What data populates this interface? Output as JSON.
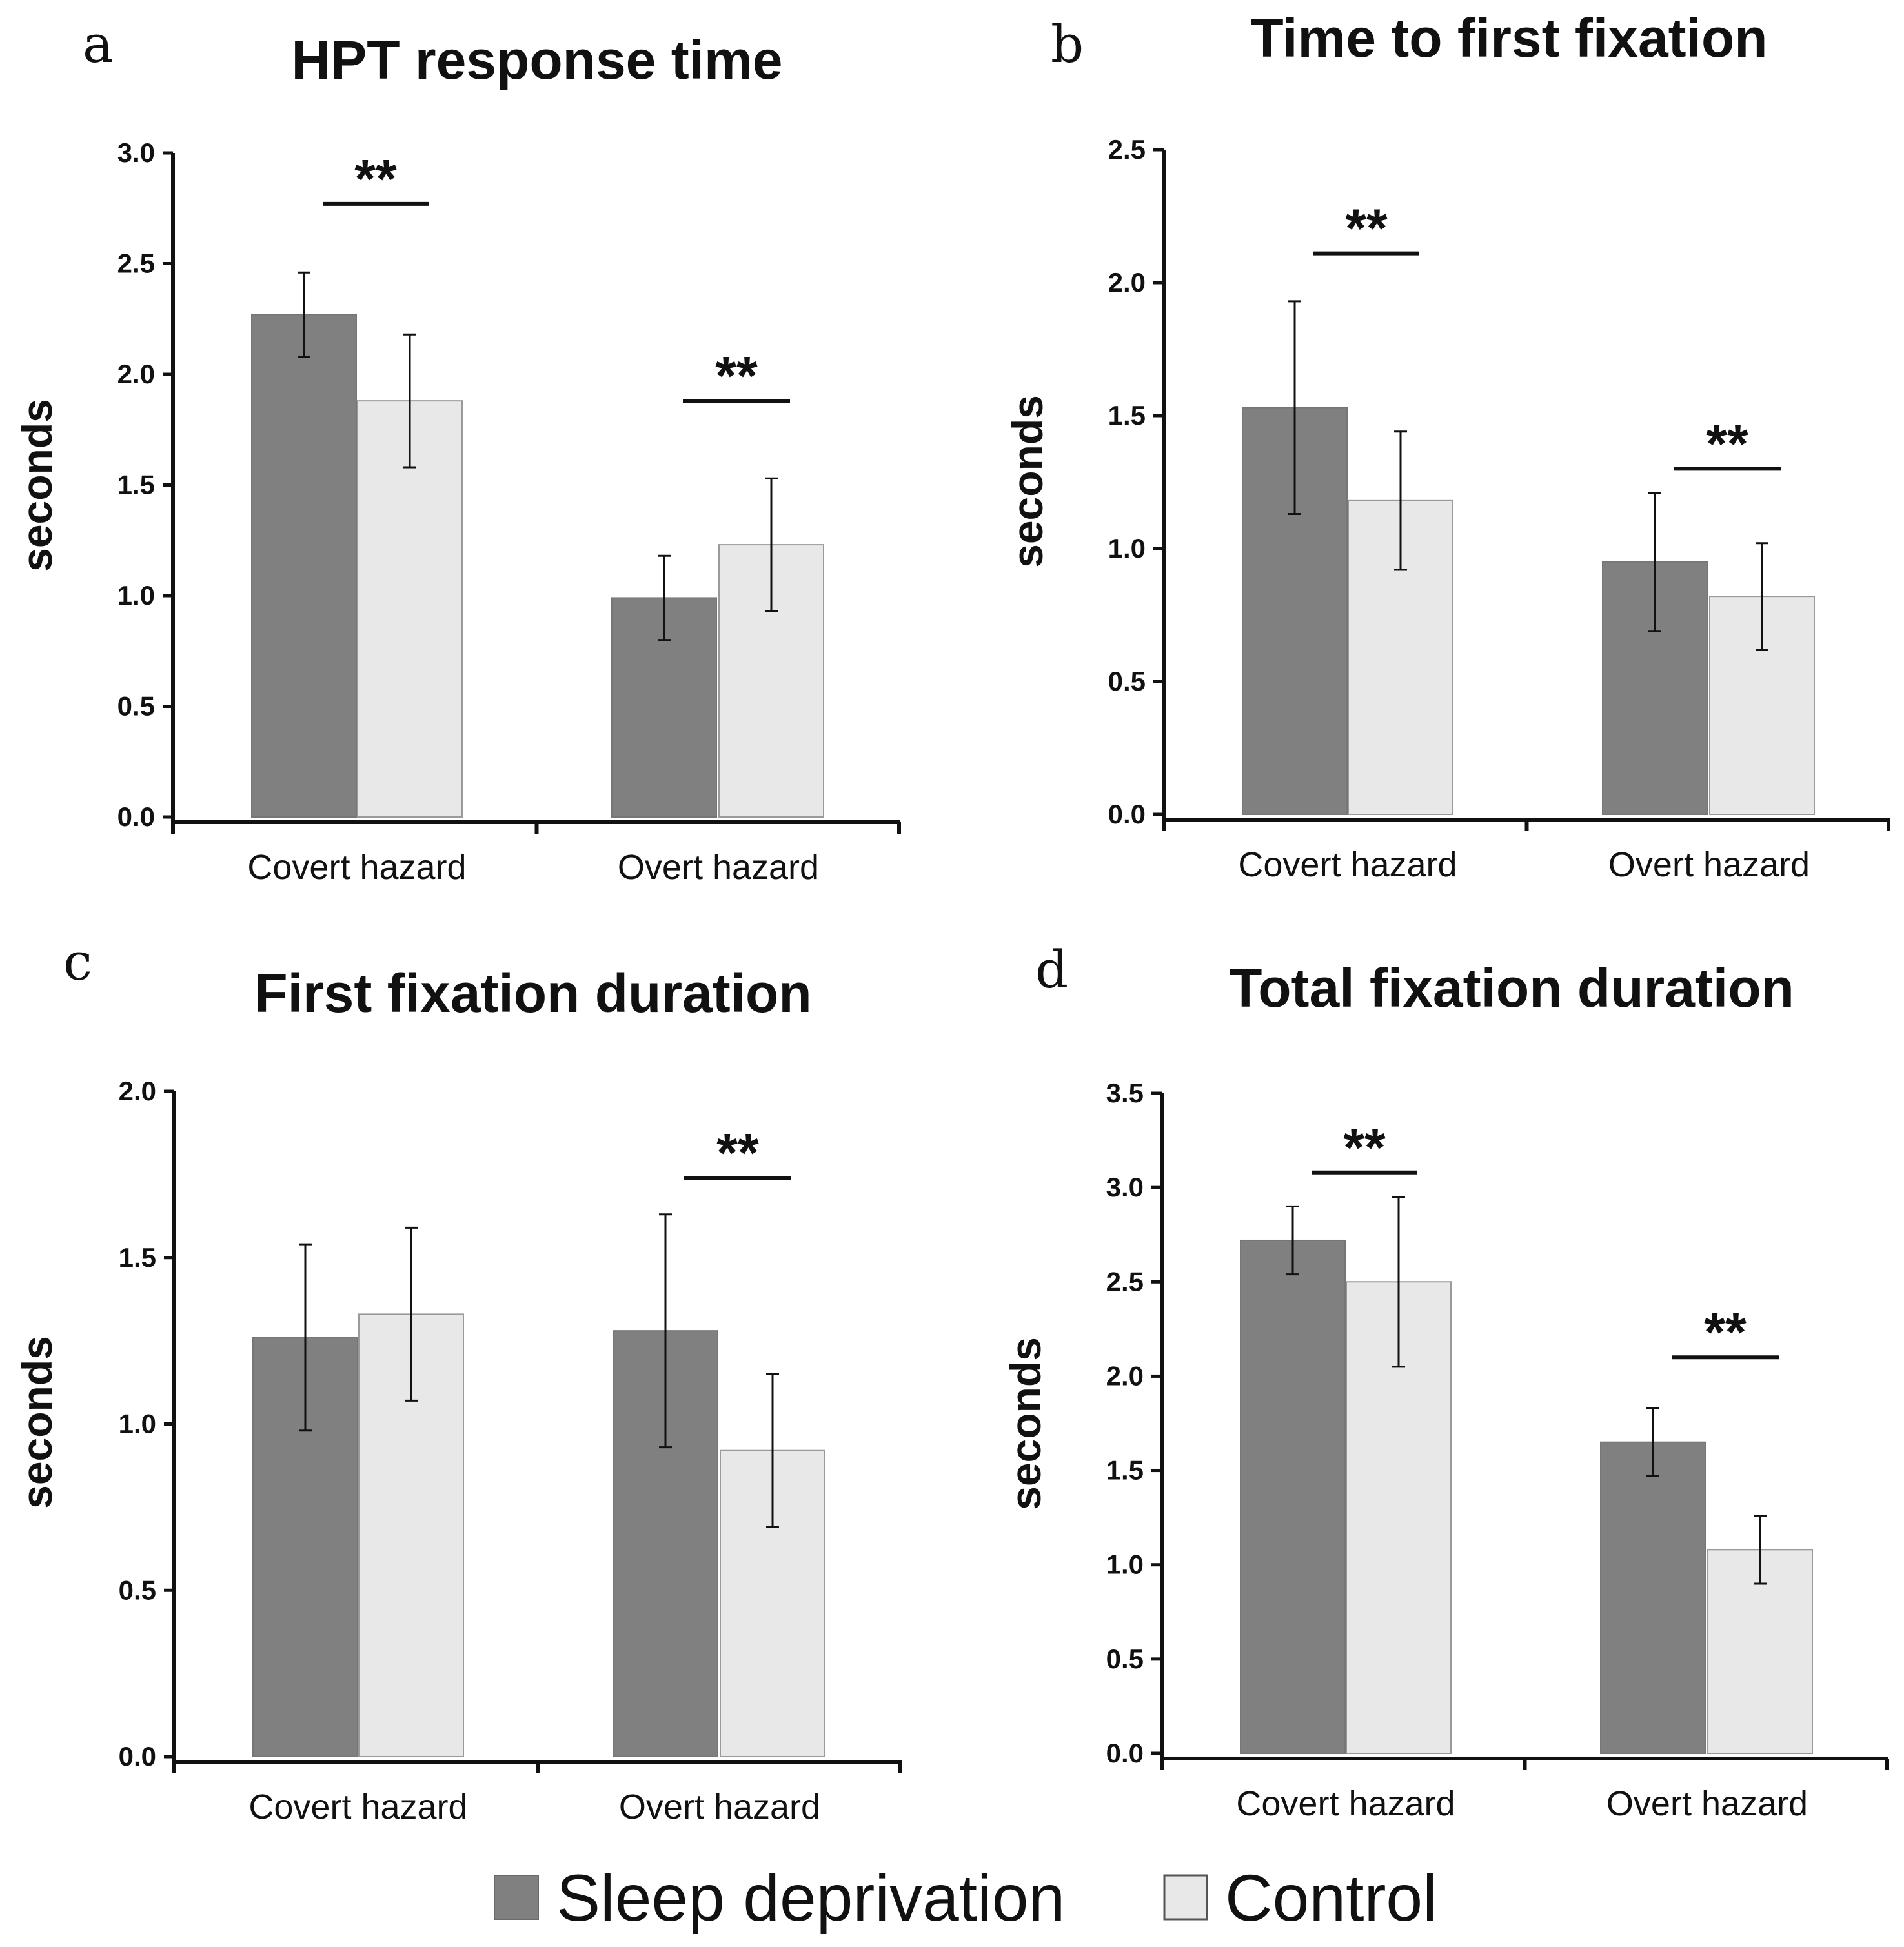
{
  "chart_data": [
    {
      "panel": "a",
      "type": "bar",
      "title": "HPT response time",
      "ylabel": "seconds",
      "xlabel": "",
      "ylim": [
        0,
        3.0
      ],
      "yticks": [
        0.0,
        0.5,
        1.0,
        1.5,
        2.0,
        2.5,
        3.0
      ],
      "ytick_labels": [
        "0.0",
        "0.5",
        "1.0",
        "1.5",
        "2.0",
        "2.5",
        "3.0"
      ],
      "categories": [
        "Covert hazard",
        "Overt hazard"
      ],
      "series": [
        {
          "name": "Sleep deprivation",
          "values": [
            2.27,
            0.99
          ],
          "errors": [
            0.19,
            0.19
          ]
        },
        {
          "name": "Control",
          "values": [
            1.88,
            1.23
          ],
          "errors": [
            0.3,
            0.3
          ]
        }
      ],
      "significance": [
        {
          "category": "Covert hazard",
          "label": "**",
          "y": 2.77
        },
        {
          "category": "Overt hazard",
          "label": "**",
          "y": 1.88
        }
      ]
    },
    {
      "panel": "b",
      "type": "bar",
      "title": "Time to first fixation",
      "ylabel": "seconds",
      "xlabel": "",
      "ylim": [
        0,
        2.5
      ],
      "yticks": [
        0.0,
        0.5,
        1.0,
        1.5,
        2.0,
        2.5
      ],
      "ytick_labels": [
        "0.0",
        "0.5",
        "1.0",
        "1.5",
        "2.0",
        "2.5"
      ],
      "categories": [
        "Covert hazard",
        "Overt hazard"
      ],
      "series": [
        {
          "name": "Sleep deprivation",
          "values": [
            1.53,
            0.95
          ],
          "errors": [
            0.4,
            0.26
          ]
        },
        {
          "name": "Control",
          "values": [
            1.18,
            0.82
          ],
          "errors": [
            0.26,
            0.2
          ]
        }
      ],
      "significance": [
        {
          "category": "Covert hazard",
          "label": "**",
          "y": 2.11
        },
        {
          "category": "Overt hazard",
          "label": "**",
          "y": 1.3
        }
      ]
    },
    {
      "panel": "c",
      "type": "bar",
      "title": "First fixation duration",
      "ylabel": "seconds",
      "xlabel": "",
      "ylim": [
        0,
        2.0
      ],
      "yticks": [
        0.0,
        0.5,
        1.0,
        1.5,
        2.0
      ],
      "ytick_labels": [
        "0.0",
        "0.5",
        "1.0",
        "1.5",
        "2.0"
      ],
      "categories": [
        "Covert hazard",
        "Overt hazard"
      ],
      "series": [
        {
          "name": "Sleep deprivation",
          "values": [
            1.26,
            1.28
          ],
          "errors": [
            0.28,
            0.35
          ]
        },
        {
          "name": "Control",
          "values": [
            1.33,
            0.92
          ],
          "errors": [
            0.26,
            0.23
          ]
        }
      ],
      "significance": [
        {
          "category": "Overt hazard",
          "label": "**",
          "y": 1.74
        }
      ]
    },
    {
      "panel": "d",
      "type": "bar",
      "title": "Total fixation duration",
      "ylabel": "seconds",
      "xlabel": "",
      "ylim": [
        0,
        3.5
      ],
      "yticks": [
        0.0,
        0.5,
        1.0,
        1.5,
        2.0,
        2.5,
        3.0,
        3.5
      ],
      "ytick_labels": [
        "0.0",
        "0.5",
        "1.0",
        "1.5",
        "2.0",
        "2.5",
        "3.0",
        "3.5"
      ],
      "categories": [
        "Covert hazard",
        "Overt hazard"
      ],
      "series": [
        {
          "name": "Sleep deprivation",
          "values": [
            2.72,
            1.65
          ],
          "errors": [
            0.18,
            0.18
          ]
        },
        {
          "name": "Control",
          "values": [
            2.5,
            1.08
          ],
          "errors": [
            0.45,
            0.18
          ]
        }
      ],
      "significance": [
        {
          "category": "Covert hazard",
          "label": "**",
          "y": 3.08
        },
        {
          "category": "Overt hazard",
          "label": "**",
          "y": 2.1
        }
      ]
    }
  ],
  "legend": {
    "items": [
      {
        "label": "Sleep deprivation",
        "color": "#808080"
      },
      {
        "label": "Control",
        "color": "#e8e8e8"
      }
    ]
  },
  "colors": {
    "sleep_deprivation": "#808080",
    "control": "#e8e8e8",
    "axis": "#111111",
    "bar_edge": "#9a9a9a"
  }
}
